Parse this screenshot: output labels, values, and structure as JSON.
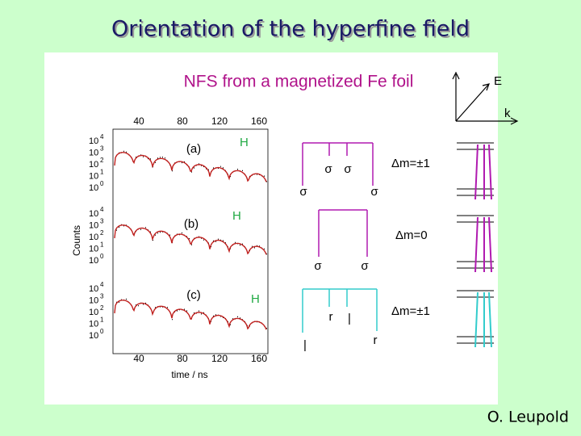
{
  "title": "Orientation of the hyperfine field",
  "figure": {
    "heading": "NFS from a magnetized Fe foil",
    "x_ticks": [
      "40",
      "80",
      "120",
      "160"
    ],
    "x_label": "time / ns",
    "y_label": "Counts",
    "tick_base": "10",
    "panels": [
      {
        "label": "(a)",
        "field": "H",
        "y_exponents": [
          "4",
          "3",
          "2",
          "1",
          "0"
        ]
      },
      {
        "label": "(b)",
        "field": "H",
        "y_exponents": [
          "4",
          "3",
          "2",
          "1",
          "0"
        ]
      },
      {
        "label": "(c)",
        "field": "H",
        "y_exponents": [
          "4",
          "3",
          "2",
          "1",
          "0"
        ]
      }
    ],
    "transitions": [
      {
        "labels": [
          "σ",
          "σ",
          "σ",
          "σ"
        ],
        "delta_m": "Δm=±1"
      },
      {
        "labels": [
          "σ",
          "σ"
        ],
        "delta_m": "Δm=0"
      },
      {
        "labels": [
          "r",
          "|",
          "r",
          "|"
        ],
        "delta_m": "Δm=±1"
      }
    ],
    "vectors": {
      "E": "E",
      "k": "k"
    }
  },
  "author": "O. Leupold"
}
